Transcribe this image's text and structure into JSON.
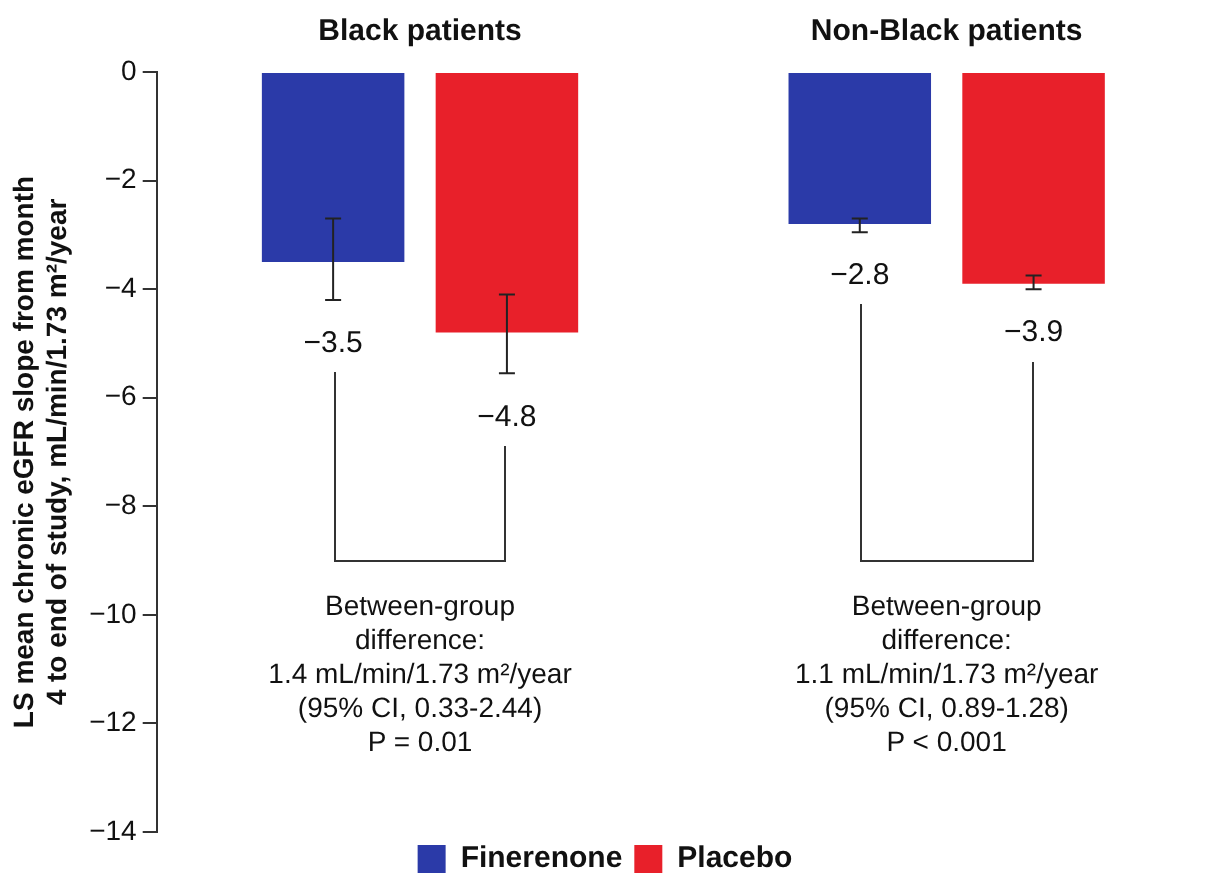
{
  "chart_data": {
    "type": "bar",
    "ylabel": "LS mean chronic eGFR slope from month 4 to end of study, mL/min/1.73 m²/year",
    "categories": [
      "Black patients",
      "Non-Black patients"
    ],
    "series": [
      {
        "name": "Finerenone",
        "color": "#2b3aa8",
        "values": [
          -3.5,
          -2.8
        ],
        "errors": [
          [
            -4.2,
            -2.7
          ],
          [
            -2.95,
            -2.7
          ]
        ],
        "value_labels": [
          "−3.5",
          "−2.8"
        ]
      },
      {
        "name": "Placebo",
        "color": "#e8202a",
        "values": [
          -4.8,
          -3.9
        ],
        "errors": [
          [
            -5.55,
            -4.1
          ],
          [
            -4.0,
            -3.75
          ]
        ],
        "value_labels": [
          "−4.8",
          "−3.9"
        ]
      }
    ],
    "ylim": [
      -14,
      0
    ],
    "yticks": [
      -14,
      -12,
      -10,
      -8,
      -6,
      -4,
      -2,
      0
    ],
    "annotations": [
      "Between-group\ndifference:\n1.4 mL/min/1.73 m²/year\n(95% CI, 0.33-2.44)\nP = 0.01",
      "Between-group\ndifference:\n1.1 mL/min/1.73 m²/year\n(95% CI, 0.89-1.28)\nP < 0.001"
    ],
    "grid": false,
    "legend": "bottom"
  }
}
